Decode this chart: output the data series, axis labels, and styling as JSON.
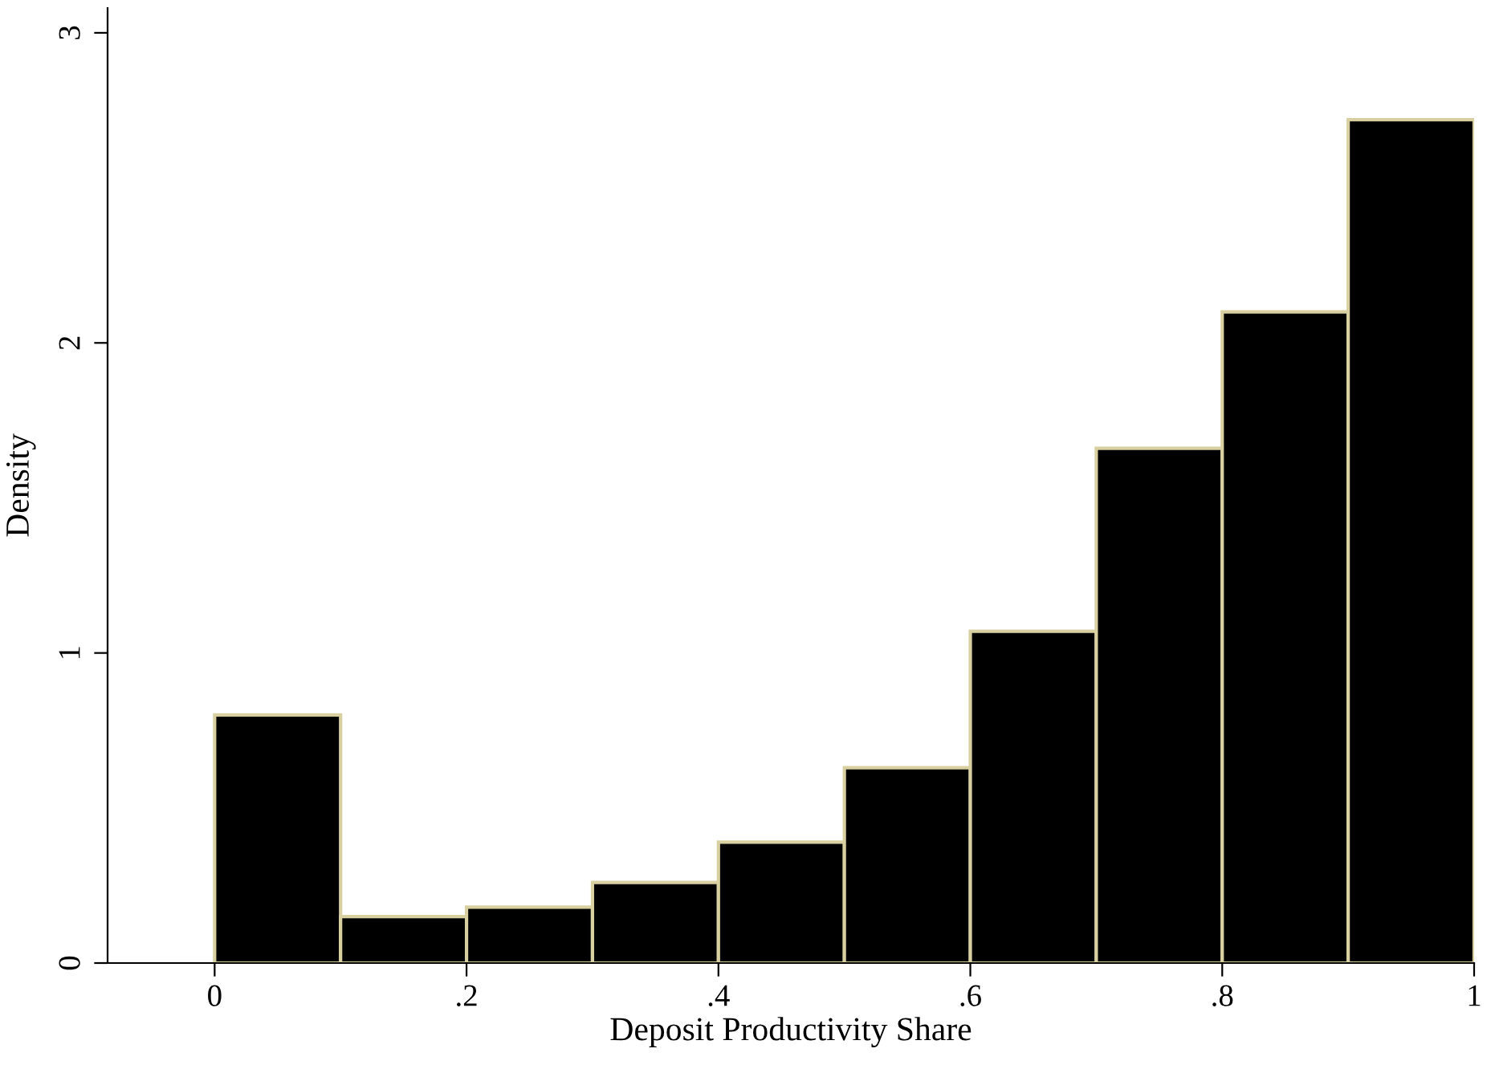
{
  "chart_data": {
    "type": "histogram",
    "xlabel": "Deposit Productivity Share",
    "ylabel": "Density",
    "bins": [
      0,
      0.1,
      0.2,
      0.3,
      0.4,
      0.5,
      0.6,
      0.7,
      0.8,
      0.9,
      1.0
    ],
    "values": [
      0.8,
      0.15,
      0.18,
      0.26,
      0.39,
      0.63,
      1.07,
      1.66,
      2.1,
      2.72
    ],
    "color": "#000000",
    "xlim": [
      -0.085,
      1.0
    ],
    "ylim": [
      0,
      3.08
    ],
    "xticks": [
      {
        "value": 0,
        "label": "0"
      },
      {
        "value": 0.2,
        "label": ".2"
      },
      {
        "value": 0.4,
        "label": ".4"
      },
      {
        "value": 0.6,
        "label": ".6"
      },
      {
        "value": 0.8,
        "label": ".8"
      },
      {
        "value": 1,
        "label": "1"
      }
    ],
    "yticks": [
      0,
      1,
      2,
      3
    ],
    "grid": false
  }
}
